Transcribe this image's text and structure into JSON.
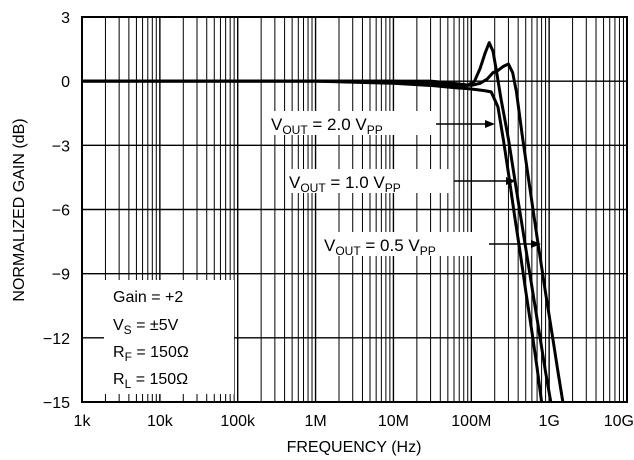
{
  "chart_data": {
    "type": "line",
    "title": "",
    "xlabel": "FREQUENCY (Hz)",
    "ylabel": "NORMALIZED GAIN (dB)",
    "x_scale": "log",
    "xlim": [
      1000,
      10000000000
    ],
    "ylim": [
      -15,
      3
    ],
    "x_ticks": [
      1000,
      10000,
      100000,
      1000000,
      10000000,
      100000000,
      1000000000,
      10000000000
    ],
    "x_tick_labels": [
      "1k",
      "10k",
      "100k",
      "1M",
      "10M",
      "100M",
      "1G",
      "10G"
    ],
    "y_ticks": [
      3,
      0,
      -3,
      -6,
      -9,
      -12,
      -15
    ],
    "y_tick_labels": [
      "3",
      "0",
      "−3",
      "−6",
      "−9",
      "−12",
      "−15"
    ],
    "grid": true,
    "series": [
      {
        "label": {
          "main": "V",
          "sub1": "OUT",
          "mid": " = 2.0 V",
          "sub2": "PP"
        },
        "x": [
          1000,
          1000000,
          10000000,
          30000000,
          60000000,
          90000000,
          120000000,
          150000000,
          180000000,
          220000000,
          260000000,
          300000000,
          360000000,
          420000000,
          500000000,
          600000000,
          700000000,
          800000000
        ],
        "y": [
          0,
          0,
          -0.1,
          -0.2,
          -0.3,
          -0.35,
          -0.4,
          -0.45,
          -0.5,
          -1.2,
          -2.8,
          -4.3,
          -6.3,
          -7.9,
          -9.8,
          -11.7,
          -13.4,
          -15
        ]
      },
      {
        "label": {
          "main": "V",
          "sub1": "OUT",
          "mid": " = 1.0 V",
          "sub2": "PP"
        },
        "x": [
          1000,
          1000000,
          10000000,
          30000000,
          60000000,
          90000000,
          110000000,
          130000000,
          150000000,
          170000000,
          190000000,
          210000000,
          240000000,
          300000000,
          400000000,
          500000000,
          600000000,
          750000000,
          900000000,
          1050000000
        ],
        "y": [
          0,
          0,
          0,
          -0.1,
          -0.2,
          -0.2,
          0,
          0.6,
          1.3,
          1.8,
          1.4,
          0.5,
          -0.8,
          -2.7,
          -5.6,
          -7.8,
          -9.6,
          -11.8,
          -13.6,
          -15
        ]
      },
      {
        "label": {
          "main": "V",
          "sub1": "OUT",
          "mid": " = 0.5 V",
          "sub2": "PP"
        },
        "x": [
          1000,
          1000000,
          10000000,
          30000000,
          60000000,
          100000000,
          130000000,
          160000000,
          190000000,
          220000000,
          260000000,
          300000000,
          340000000,
          380000000,
          450000000,
          550000000,
          700000000,
          900000000,
          1100000000,
          1300000000,
          1500000000
        ],
        "y": [
          0,
          0,
          0,
          0,
          -0.1,
          -0.2,
          -0.1,
          0.1,
          0.4,
          0.5,
          0.7,
          0.8,
          0.4,
          -0.5,
          -2.5,
          -4.7,
          -7.3,
          -9.9,
          -11.9,
          -13.6,
          -15
        ]
      }
    ],
    "conditions": [
      {
        "main": "Gain = +2",
        "sub": "",
        "rest": ""
      },
      {
        "main": "V",
        "sub": "S",
        "rest": " = ±5V"
      },
      {
        "main": "R",
        "sub": "F",
        "rest": " = 150Ω"
      },
      {
        "main": "R",
        "sub": "L",
        "rest": " = 150Ω"
      }
    ]
  }
}
